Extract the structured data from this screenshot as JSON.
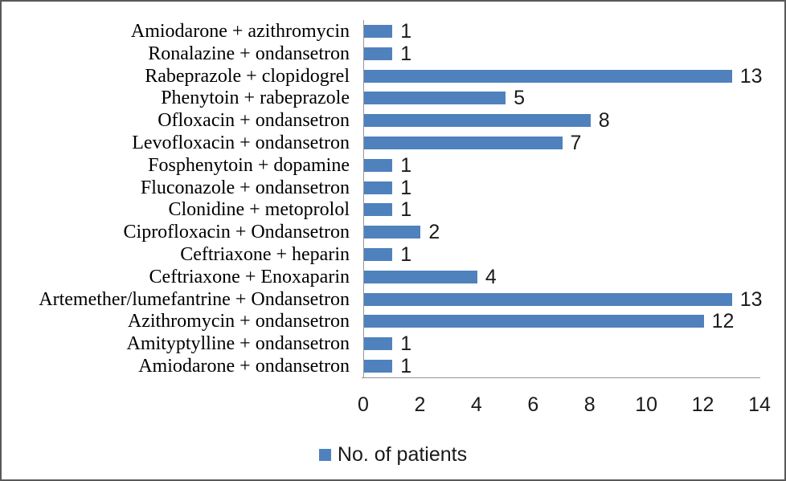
{
  "chart_data": {
    "type": "bar",
    "orientation": "horizontal",
    "title": "",
    "categories": [
      "Amiodarone + azithromycin",
      "Ronalazine + ondansetron",
      "Rabeprazole + clopidogrel",
      "Phenytoin + rabeprazole",
      "Ofloxacin + ondansetron",
      "Levofloxacin + ondansetron",
      "Fosphenytoin + dopamine",
      "Fluconazole + ondansetron",
      "Clonidine + metoprolol",
      "Ciprofloxacin + Ondansetron",
      "Ceftriaxone + heparin",
      "Ceftriaxone + Enoxaparin",
      "Artemether/lumefantrine + Ondansetron",
      "Azithromycin + ondansetron",
      "Amityptylline + ondansetron",
      "Amiodarone + ondansetron"
    ],
    "values": [
      1,
      1,
      13,
      5,
      8,
      7,
      1,
      1,
      1,
      2,
      1,
      4,
      13,
      12,
      1,
      1
    ],
    "data_labels": true,
    "xlim": [
      0,
      14
    ],
    "x_ticks": [
      "0",
      "2",
      "4",
      "6",
      "8",
      "10",
      "12",
      "14"
    ],
    "grid": false,
    "legend": [
      "No. of patients"
    ],
    "legend_position": "bottom",
    "colors": {
      "series": "#4F81BD",
      "axis_line": "#969696",
      "frame_border": "#595959",
      "category_text": "#000000",
      "value_text": "#1a1a1a"
    }
  }
}
